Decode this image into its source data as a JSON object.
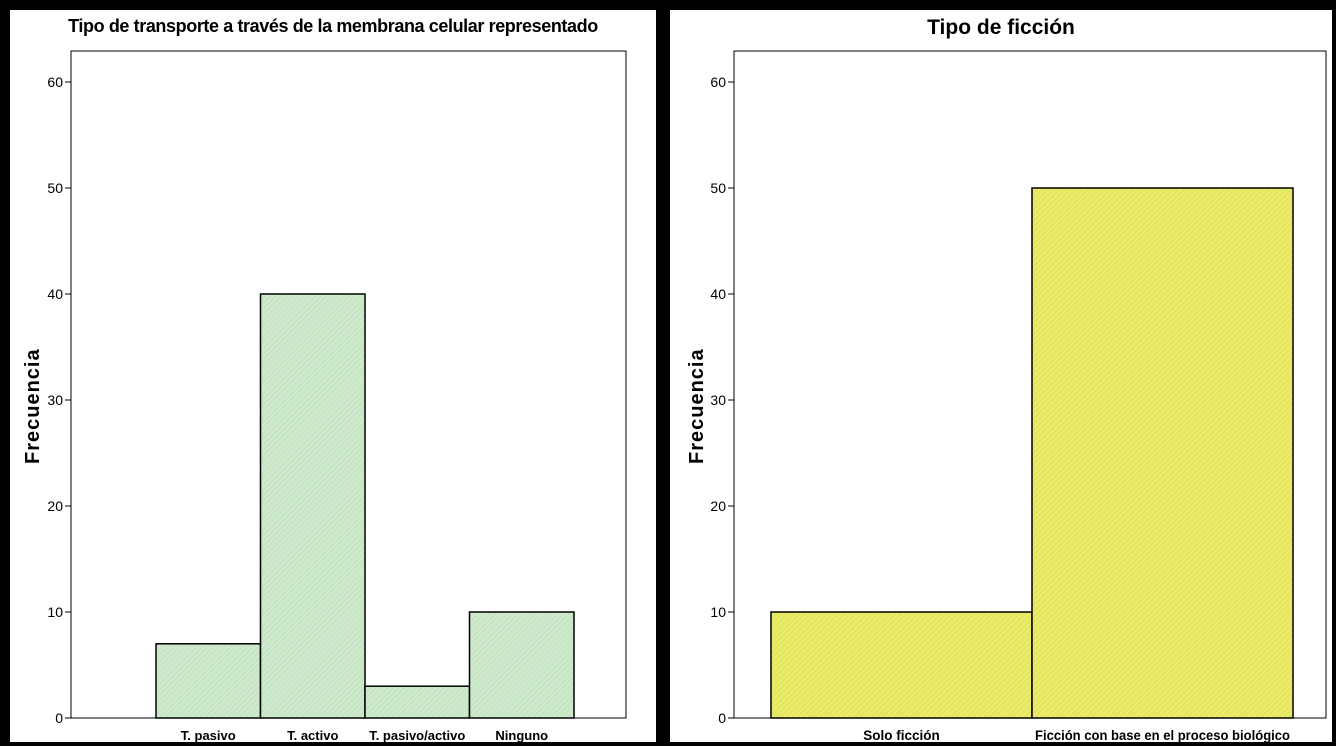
{
  "chart_data": [
    {
      "type": "bar",
      "title": "Tipo de transporte a través de la membrana celular representado",
      "xlabel": "",
      "ylabel": "Frecuencia",
      "categories": [
        "T. pasivo",
        "T. activo",
        "T. pasivo/activo",
        "Ninguno"
      ],
      "values": [
        7,
        40,
        3,
        10
      ],
      "ylim": [
        0,
        60
      ],
      "yticks": [
        "0",
        "10",
        "20",
        "30",
        "40",
        "50",
        "60"
      ],
      "bar_color": "#c6e6c6",
      "grid": false
    },
    {
      "type": "bar",
      "title": "Tipo de ficción",
      "xlabel": "",
      "ylabel": "Frecuencia",
      "categories": [
        "Solo ficción",
        "Ficción con base en el proceso biológico"
      ],
      "values": [
        10,
        50
      ],
      "ylim": [
        0,
        60
      ],
      "yticks": [
        "0",
        "10",
        "20",
        "30",
        "40",
        "50",
        "60"
      ],
      "bar_color": "#e6e65a",
      "grid": false
    }
  ]
}
